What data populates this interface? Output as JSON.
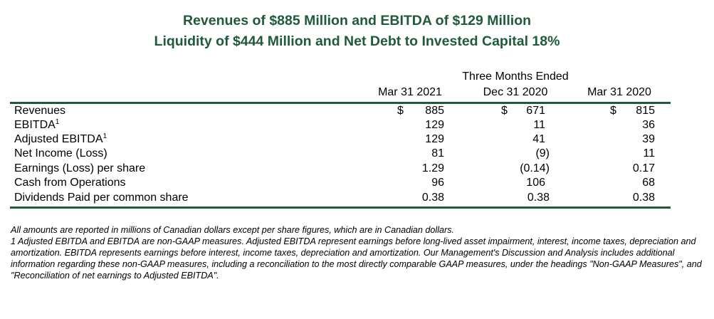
{
  "header": {
    "title_line1": "Revenues of $885 Million and EBITDA of $129 Million",
    "title_line2": "Liquidity of $444 Million and Net Debt to Invested Capital 18%"
  },
  "table": {
    "group_header": "Three Months Ended",
    "columns": [
      "Mar 31 2021",
      "Dec 31 2020",
      "Mar 31 2020"
    ],
    "currency_symbol": "$",
    "superscript_marker": "1",
    "rows": [
      {
        "label": "Revenues",
        "values": [
          "885",
          "671",
          "815"
        ]
      },
      {
        "label": "EBITDA",
        "values": [
          "129",
          "11",
          "36"
        ]
      },
      {
        "label": "Adjusted EBITDA",
        "values": [
          "129",
          "41",
          "39"
        ]
      },
      {
        "label": "Net Income (Loss)",
        "values": [
          "81",
          "(9)",
          "11"
        ]
      },
      {
        "label": "Earnings (Loss) per share",
        "values": [
          "1.29",
          "(0.14)",
          "0.17"
        ]
      },
      {
        "label": "Cash from Operations",
        "values": [
          "96",
          "106",
          "68"
        ]
      },
      {
        "label": "Dividends Paid per common share",
        "values": [
          "0.38",
          "0.38",
          "0.38"
        ]
      }
    ]
  },
  "footnotes": {
    "line1": "All amounts are reported in millions of Canadian dollars except per share figures, which are in Canadian dollars.",
    "line2": "1 Adjusted EBITDA and EBITDA are non-GAAP measures.  Adjusted EBITDA represent earnings before long-lived asset impairment, interest, income taxes, depreciation and amortization.  EBITDA represents earnings before interest, income taxes, depreciation and amortization.  Our Management's Discussion and Analysis includes additional information regarding these non-GAAP measures, including a reconciliation to the most directly comparable GAAP measures, under the headings \"Non-GAAP Measures\", and \"Reconciliation of net earnings to Adjusted EBITDA\"."
  },
  "colors": {
    "accent": "#1f5a3b",
    "text": "#000000"
  }
}
